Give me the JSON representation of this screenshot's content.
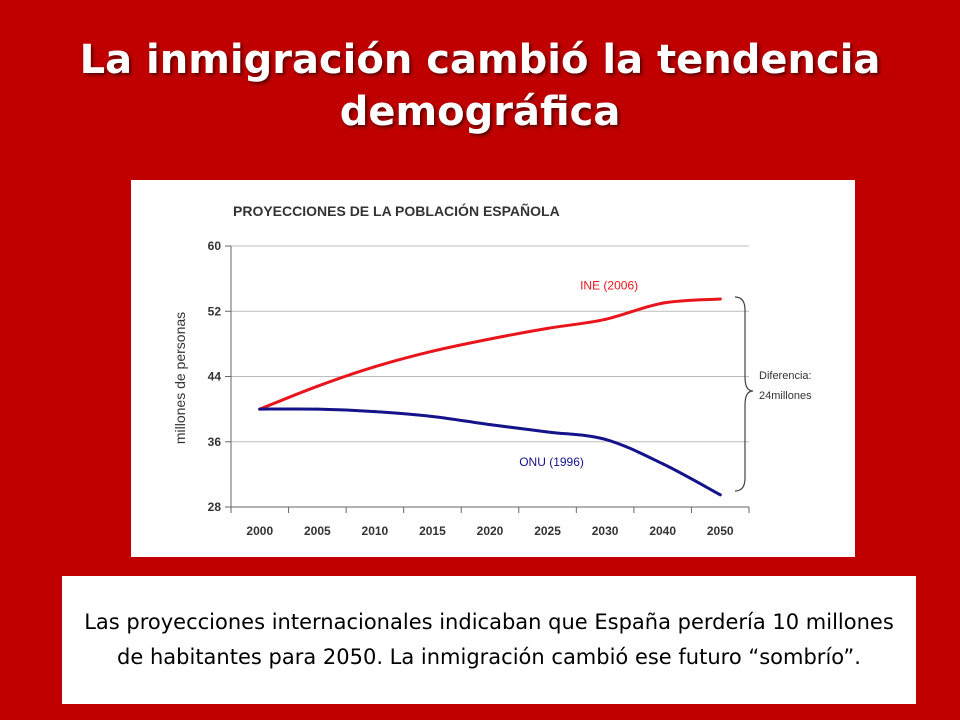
{
  "slide": {
    "title": "La inmigración cambió la tendencia demográfica",
    "caption": "Las proyecciones internacionales indicaban que España perdería 10 millones de habitantes para 2050. La inmigración cambió ese futuro “sombrío”."
  },
  "chart_data": {
    "type": "line",
    "title": "PROYECCIONES DE LA POBLACIÓN ESPAÑOLA",
    "xlabel": "",
    "ylabel": "millones de personas",
    "categories": [
      "2000",
      "2005",
      "2010",
      "2015",
      "2020",
      "2025",
      "2030",
      "2040",
      "2050"
    ],
    "yticks": [
      28,
      36,
      44,
      52,
      60
    ],
    "ylim": [
      28,
      60
    ],
    "grid": true,
    "series": [
      {
        "name": "INE (2006)",
        "color": "#e8161c",
        "values": [
          40.0,
          42.8,
          45.2,
          47.1,
          48.6,
          49.9,
          51.0,
          53.0,
          53.5
        ]
      },
      {
        "name": "ONU (1996)",
        "color": "#14138a",
        "values": [
          40.0,
          40.0,
          39.7,
          39.1,
          38.1,
          37.2,
          36.3,
          33.3,
          29.5
        ]
      }
    ],
    "annotation": {
      "line1": "Diferencia:",
      "line2": "24millones"
    }
  }
}
